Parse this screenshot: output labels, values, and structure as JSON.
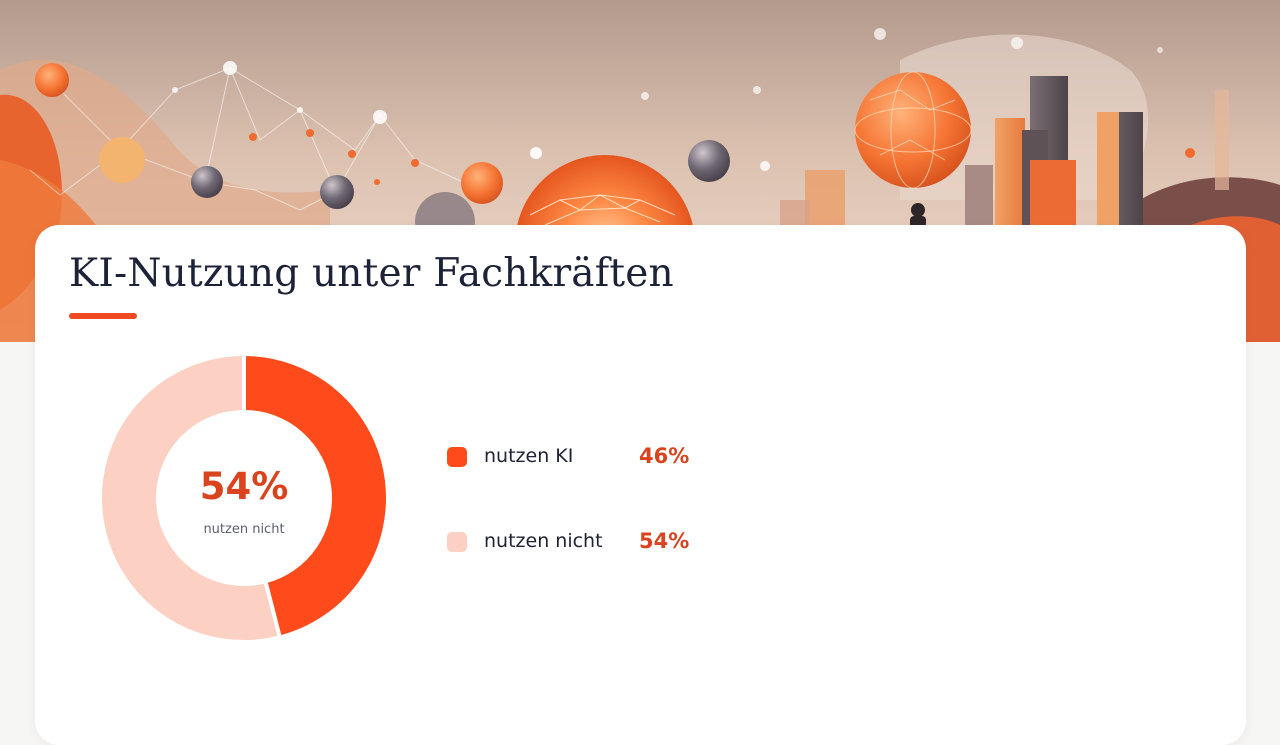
{
  "title": "KI-Nutzung unter Fachkräften",
  "colors": {
    "accent": "#f04a22",
    "nutzen_ki": "#ff4a1c",
    "nutzen_nicht": "#fdd0c4",
    "title_text": "#1c2237",
    "value_text": "#d9431e"
  },
  "center": {
    "value": "54%",
    "label": "nutzen nicht"
  },
  "legend": [
    {
      "label": "nutzen KI",
      "value": "46%"
    },
    {
      "label": "nutzen nicht",
      "value": "54%"
    }
  ],
  "chart_data": {
    "type": "pie",
    "title": "KI-Nutzung unter Fachkräften",
    "categories": [
      "nutzen KI",
      "nutzen nicht"
    ],
    "values": [
      46,
      54
    ],
    "unit": "%",
    "donut": true,
    "legend_position": "right"
  }
}
